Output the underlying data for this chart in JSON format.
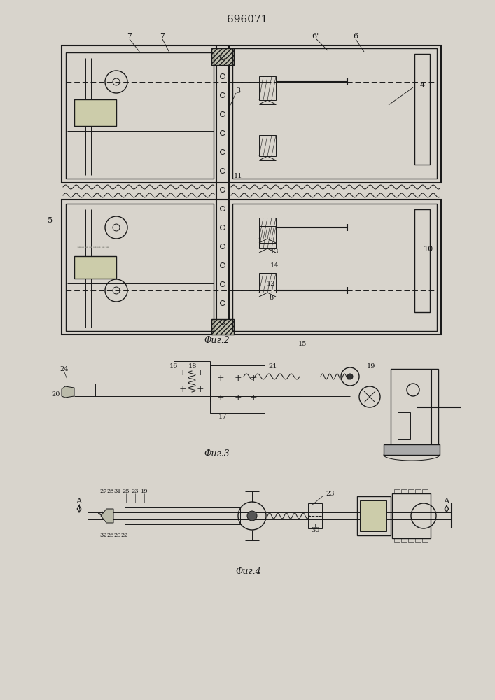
{
  "title": "696071",
  "title_fontsize": 11,
  "bg_color": "#d8d4cc",
  "line_color": "#1a1a1a",
  "fig2_label": "Фиг.2",
  "fig3_label": "Фиг.3",
  "fig4_label": "Фиг.4"
}
